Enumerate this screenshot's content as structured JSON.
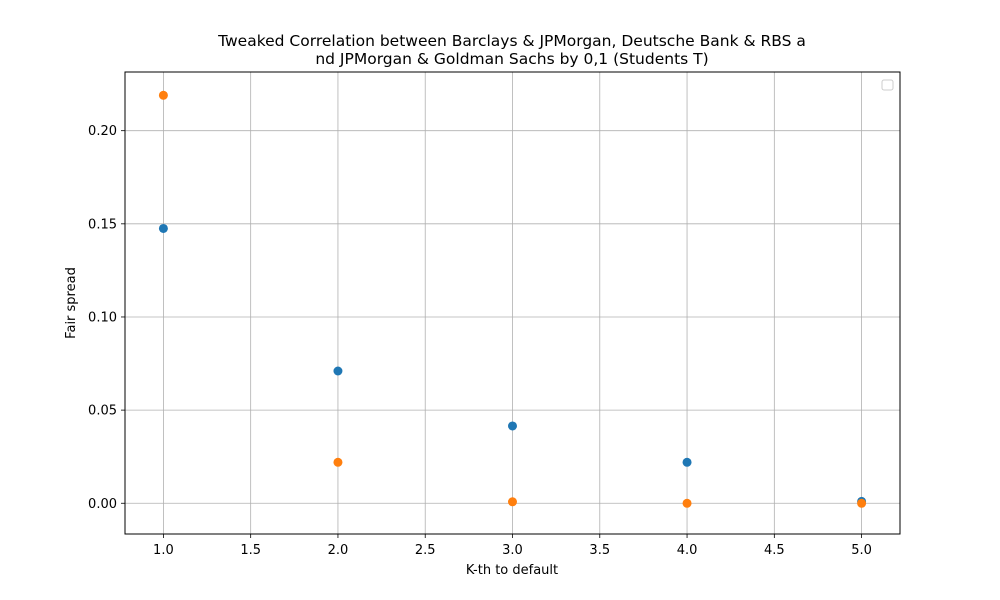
{
  "chart_data": {
    "type": "scatter",
    "title_line1": "Tweaked Correlation between Barclays & JPMorgan, Deutsche Bank & RBS a",
    "title_line2": "nd JPMorgan & Goldman Sachs by 0,1 (Students T)",
    "xlabel": "K-th to default",
    "ylabel": "Fair spread",
    "xlim": [
      0.78,
      5.22
    ],
    "ylim": [
      -0.0165,
      0.2315
    ],
    "xticks": [
      1.0,
      1.5,
      2.0,
      2.5,
      3.0,
      3.5,
      4.0,
      4.5,
      5.0
    ],
    "xtick_labels": [
      "1.0",
      "1.5",
      "2.0",
      "2.5",
      "3.0",
      "3.5",
      "4.0",
      "4.5",
      "5.0"
    ],
    "yticks": [
      0.0,
      0.05,
      0.1,
      0.15,
      0.2
    ],
    "ytick_labels": [
      "0.00",
      "0.05",
      "0.10",
      "0.15",
      "0.20"
    ],
    "grid": true,
    "legend": "top-right (empty)",
    "series": [
      {
        "color": "#1f77b4",
        "x": [
          1,
          2,
          3,
          4,
          5
        ],
        "y": [
          0.1475,
          0.071,
          0.0415,
          0.022,
          0.001
        ]
      },
      {
        "color": "#ff7f0e",
        "x": [
          1,
          2,
          3,
          4,
          5
        ],
        "y": [
          0.219,
          0.022,
          0.0008,
          0.0,
          0.0
        ]
      }
    ]
  }
}
